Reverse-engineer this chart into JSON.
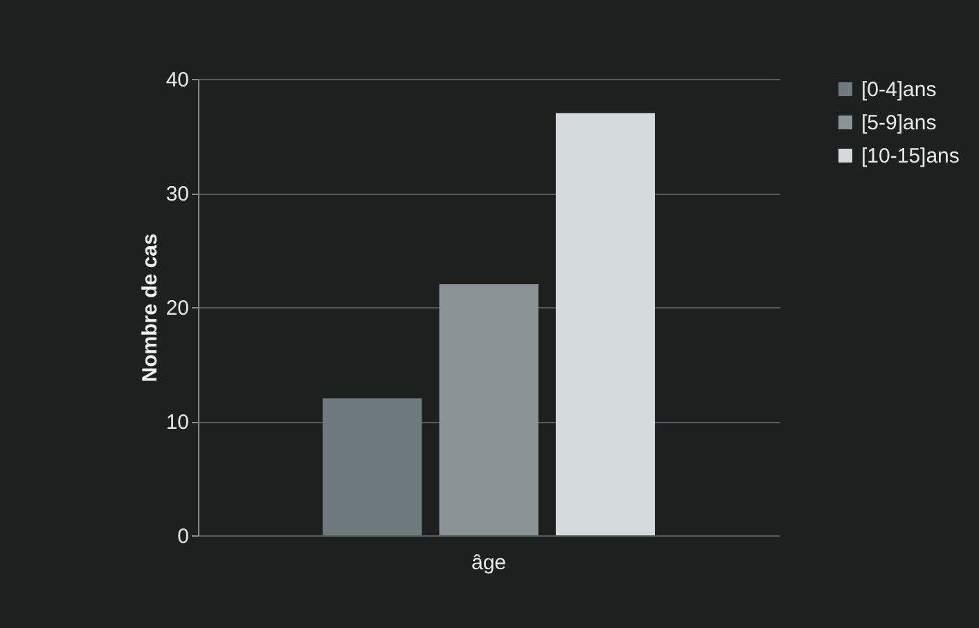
{
  "chart_data": {
    "type": "bar",
    "ylabel": "Nombre de cas",
    "categories": [
      "âge"
    ],
    "series": [
      {
        "name": "[0-4]ans",
        "color": "#6d7b80",
        "values": [
          12
        ]
      },
      {
        "name": "[5-9]ans",
        "color": "#8a9498",
        "values": [
          22
        ]
      },
      {
        "name": "[10-15]ans",
        "color": "#d4dadc",
        "values": [
          37
        ]
      }
    ],
    "ylim": [
      0,
      40
    ],
    "yticks": [
      0,
      10,
      20,
      30,
      40
    ],
    "grid": "y",
    "legend": "right"
  }
}
